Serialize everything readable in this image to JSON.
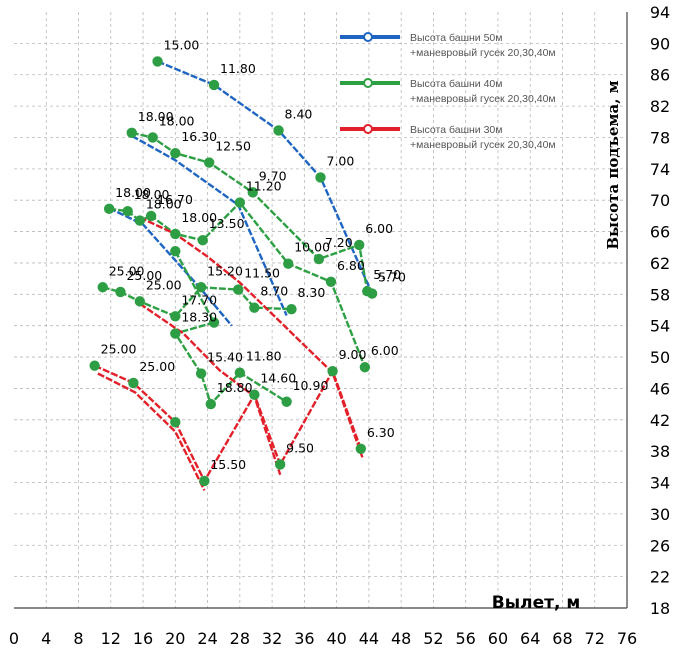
{
  "chart_data": {
    "type": "line",
    "xlabel": "Вылет, м",
    "ylabel": "Высота подъема, м",
    "xlim": [
      0,
      76
    ],
    "ylim": [
      18,
      94
    ],
    "x_ticks": [
      "0",
      "4",
      "8",
      "12",
      "16",
      "20",
      "24",
      "28",
      "32",
      "36",
      "40",
      "44",
      "48",
      "52",
      "56",
      "60",
      "64",
      "68",
      "72",
      "76"
    ],
    "y_ticks": [
      "18",
      "22",
      "26",
      "30",
      "34",
      "38",
      "42",
      "46",
      "50",
      "54",
      "58",
      "62",
      "66",
      "70",
      "74",
      "78",
      "82",
      "86",
      "90",
      "94"
    ],
    "grid": true,
    "legend_position": "top-right",
    "colors": {
      "blue": "#1f66c2",
      "green": "#2ea044",
      "red": "#e2202a",
      "marker": "#2e9e45"
    },
    "legend": [
      {
        "line1": "Высота башни 50м",
        "line2": "+маневровый гусек 20,30,40м",
        "color": "#1f66c2"
      },
      {
        "line1": "Высота башни 40м",
        "line2": "+маневровый гусек 20,30,40м",
        "color": "#2ea044"
      },
      {
        "line1": "Высота башни 30м",
        "line2": "+маневровый гусек 20,30,40м",
        "color": "#e2202a"
      }
    ],
    "series": [
      {
        "color": "blue",
        "x": [
          17.8,
          24.8,
          32.8,
          38.0,
          44.4
        ],
        "y": [
          87.7,
          84.7,
          78.9,
          72.9,
          58.1
        ],
        "labels": [
          "15.00",
          "11.80",
          "8.40",
          "7.00",
          "5.70"
        ],
        "markers": [
          true,
          true,
          true,
          true,
          true
        ]
      },
      {
        "color": "blue",
        "x": [
          14.6,
          20.0,
          27.8,
          33.8
        ],
        "y": [
          78.2,
          75.1,
          69.4,
          55.3
        ],
        "labels": [],
        "markers": [
          false,
          false,
          false,
          false
        ]
      },
      {
        "color": "blue",
        "x": [
          11.8,
          16.0,
          23.0,
          27.0
        ],
        "y": [
          69.0,
          66.9,
          58.9,
          54.0
        ],
        "labels": [],
        "markers": [
          false,
          false,
          false,
          false
        ]
      },
      {
        "color": "green",
        "x": [
          14.6,
          17.2,
          20.0,
          24.2,
          29.6,
          37.8,
          42.8,
          43.8
        ],
        "y": [
          78.6,
          78.0,
          76.0,
          74.8,
          71.0,
          62.5,
          64.3,
          58.4
        ],
        "labels": [
          "18.00",
          "18.00",
          "16.30",
          "12.50",
          "9.70",
          "7.20",
          "6.00",
          "5.70"
        ],
        "markers": [
          true,
          true,
          true,
          true,
          true,
          true,
          true,
          true
        ]
      },
      {
        "color": "green",
        "x": [
          11.8,
          14.1,
          15.6,
          17.0,
          20.0,
          23.4,
          28.0,
          34.0,
          39.3,
          43.5
        ],
        "y": [
          68.9,
          68.6,
          67.4,
          68.0,
          65.7,
          64.9,
          69.7,
          61.9,
          59.6,
          48.7
        ],
        "labels": [
          "18.00",
          "18.00",
          "18.00",
          "16.70",
          "18.00",
          "13.50",
          "11.20",
          "10.00",
          "6.80",
          "6.00"
        ],
        "markers": [
          true,
          true,
          true,
          true,
          true,
          true,
          true,
          true,
          true,
          true
        ]
      },
      {
        "color": "green",
        "x": [
          11.0,
          13.2,
          15.6,
          20.0,
          23.2,
          27.8,
          29.8,
          34.4
        ],
        "y": [
          58.9,
          58.3,
          57.1,
          55.2,
          58.9,
          58.6,
          56.3,
          56.1
        ],
        "labels": [
          "25.00",
          "25.00",
          "25.00",
          "17.70",
          "15.20",
          "11.50",
          "8.70",
          "8.30"
        ],
        "markers": [
          true,
          true,
          true,
          true,
          true,
          true,
          true,
          true
        ]
      },
      {
        "color": "green",
        "x": [
          20.0,
          24.8,
          20.0,
          23.2,
          24.4,
          28.0,
          33.8
        ],
        "y": [
          63.5,
          54.4,
          53.0,
          47.9,
          44.0,
          48.0,
          44.3
        ],
        "labels": [
          "",
          "",
          "18.30",
          "15.40",
          "18.80",
          "11.80",
          "10.90"
        ],
        "markers": [
          true,
          true,
          true,
          true,
          true,
          true,
          true
        ]
      },
      {
        "color": "red",
        "x": [
          15.6,
          20.0,
          24.0,
          28.0,
          31.5,
          35.5,
          39.5,
          43.2
        ],
        "y": [
          67.8,
          65.7,
          62.8,
          59.5,
          56.0,
          52.0,
          48.0,
          37.2
        ],
        "labels": [],
        "markers": [
          false,
          false,
          false,
          false,
          false,
          false,
          false,
          false
        ]
      },
      {
        "color": "red",
        "x": [
          15.6,
          21.0,
          25.5,
          29.8,
          33.0
        ],
        "y": [
          56.8,
          53.0,
          48.3,
          45.0,
          35.0
        ],
        "labels": [],
        "markers": [
          false,
          false,
          false,
          false,
          false
        ]
      },
      {
        "color": "red",
        "x": [
          10.4,
          15.0,
          20.0,
          23.6
        ],
        "y": [
          47.9,
          45.5,
          40.5,
          33.0
        ],
        "labels": [],
        "markers": [
          false,
          false,
          false,
          false
        ]
      },
      {
        "color": "red",
        "x": [
          10.0,
          14.8,
          20.0,
          23.6,
          29.8,
          33.0,
          39.5,
          43.0
        ],
        "y": [
          48.9,
          46.7,
          41.7,
          34.2,
          45.2,
          36.3,
          48.2,
          38.3
        ],
        "labels": [
          "25.00",
          "25.00",
          "",
          "15.50",
          "14.60",
          "9.50",
          "9.00",
          "6.30"
        ],
        "markers": [
          true,
          true,
          true,
          true,
          true,
          true,
          true,
          true
        ]
      }
    ]
  }
}
